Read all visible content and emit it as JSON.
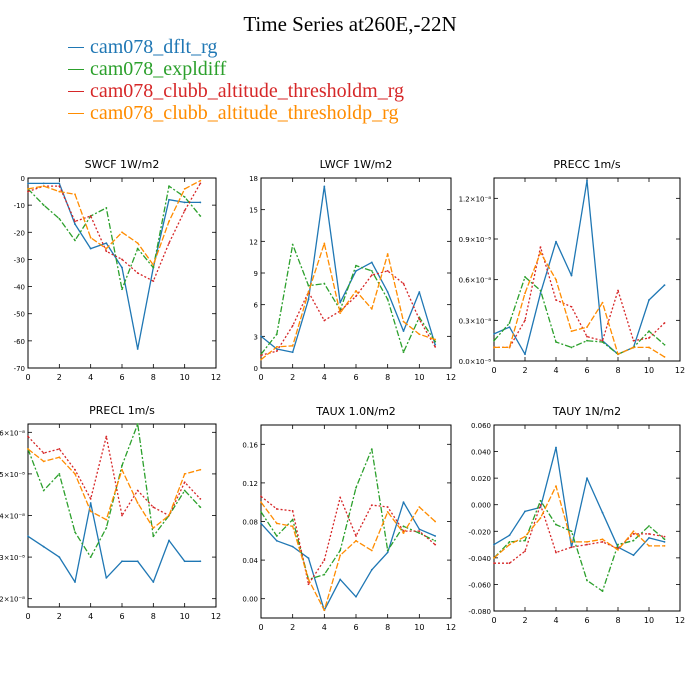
{
  "figure_title": "Time Series at260E,-22N",
  "legend": [
    {
      "name": "cam078_dflt_rg",
      "color": "#1f77b4"
    },
    {
      "name": "cam078_expldiff",
      "color": "#2ca02c"
    },
    {
      "name": "cam078_clubb_altitude_thresholdm_rg",
      "color": "#d62728"
    },
    {
      "name": "cam078_clubb_altitude_thresholdp_rg",
      "color": "#ff8c00"
    }
  ],
  "chart_data": [
    {
      "type": "line",
      "title": "SWCF   1W/m2",
      "xlim": [
        0,
        12
      ],
      "ylim": [
        -70,
        0
      ],
      "xticks": [
        "0",
        "2",
        "4",
        "6",
        "8",
        "10",
        "12"
      ],
      "yticks": [
        {
          "v": 0,
          "l": "0"
        },
        {
          "v": -10,
          "l": "-10"
        },
        {
          "v": -20,
          "l": "-20"
        },
        {
          "v": -30,
          "l": "-30"
        },
        {
          "v": -40,
          "l": "-40"
        },
        {
          "v": -50,
          "l": "-50"
        },
        {
          "v": -60,
          "l": "-60"
        },
        {
          "v": -70,
          "l": "-70"
        }
      ],
      "x": [
        0,
        1,
        2,
        3,
        4,
        5,
        6,
        7,
        8,
        9,
        10,
        11
      ],
      "series": [
        {
          "name": "cam078_dflt_rg",
          "values": [
            -2,
            -2,
            -2,
            -17,
            -26,
            -24,
            -33,
            -63,
            -33,
            -8,
            -9,
            -9
          ]
        },
        {
          "name": "cam078_expldiff",
          "values": [
            -4,
            -10,
            -15,
            -23,
            -14,
            -11,
            -41,
            -26,
            -33,
            -3,
            -7,
            -14
          ]
        },
        {
          "name": "cam078_clubb_altitude_thresholdm_rg",
          "values": [
            -5,
            -3,
            -3,
            -16,
            -14,
            -27,
            -30,
            -35,
            -38,
            -24,
            -12,
            -2
          ]
        },
        {
          "name": "cam078_clubb_altitude_thresholdp_rg",
          "values": [
            -4,
            -3,
            -5,
            -6,
            -22,
            -26,
            -20,
            -24,
            -32,
            -16,
            -4,
            -1
          ]
        }
      ]
    },
    {
      "type": "line",
      "title": "LWCF   1W/m2",
      "xlim": [
        0,
        12
      ],
      "ylim": [
        0,
        18
      ],
      "xticks": [
        "0",
        "2",
        "4",
        "6",
        "8",
        "10",
        "12"
      ],
      "yticks": [
        {
          "v": 0,
          "l": "0"
        },
        {
          "v": 3,
          "l": "3"
        },
        {
          "v": 6,
          "l": "6"
        },
        {
          "v": 9,
          "l": "9"
        },
        {
          "v": 12,
          "l": "12"
        },
        {
          "v": 15,
          "l": "15"
        },
        {
          "v": 18,
          "l": "18"
        }
      ],
      "x": [
        0,
        1,
        2,
        3,
        4,
        5,
        6,
        7,
        8,
        9,
        10,
        11
      ],
      "series": [
        {
          "name": "cam078_dflt_rg",
          "values": [
            3,
            1.8,
            1.5,
            6.5,
            17.2,
            6.2,
            9.2,
            10,
            7.2,
            3.5,
            7.2,
            2.2
          ]
        },
        {
          "name": "cam078_expldiff",
          "values": [
            1.3,
            3.2,
            11.7,
            7.8,
            8,
            5.5,
            9.7,
            9.2,
            6.5,
            1.5,
            4.8,
            2.5
          ]
        },
        {
          "name": "cam078_clubb_altitude_thresholdm_rg",
          "values": [
            1.2,
            1.6,
            4,
            7.2,
            4.5,
            5.4,
            6.8,
            8.8,
            9.2,
            8,
            4.6,
            2
          ]
        },
        {
          "name": "cam078_clubb_altitude_thresholdp_rg",
          "values": [
            0.8,
            2,
            2.1,
            7.2,
            11.8,
            5.2,
            7.3,
            5.6,
            10.8,
            4.4,
            3.2,
            2.7
          ]
        }
      ]
    },
    {
      "type": "line",
      "title": "PRECC   1m/s",
      "xlim": [
        0,
        12
      ],
      "ylim": [
        0,
        1.35
      ],
      "xticks": [
        "0",
        "2",
        "4",
        "6",
        "8",
        "10",
        "12"
      ],
      "yticks": [
        {
          "v": 0,
          "l": "0.0×10⁻⁸"
        },
        {
          "v": 0.3,
          "l": "0.3×10⁻⁸"
        },
        {
          "v": 0.6,
          "l": "0.6×10⁻⁸"
        },
        {
          "v": 0.9,
          "l": "0.9×10⁻⁸"
        },
        {
          "v": 1.2,
          "l": "1.2×10⁻⁸"
        }
      ],
      "x": [
        0,
        1,
        2,
        3,
        4,
        5,
        6,
        7,
        8,
        9,
        10,
        11
      ],
      "series": [
        {
          "name": "cam078_dflt_rg",
          "values": [
            0.2,
            0.25,
            0.05,
            0.5,
            0.88,
            0.63,
            1.33,
            0.15,
            0.05,
            0.1,
            0.45,
            0.56
          ]
        },
        {
          "name": "cam078_expldiff",
          "values": [
            0.15,
            0.28,
            0.62,
            0.52,
            0.14,
            0.1,
            0.15,
            0.14,
            0.05,
            0.1,
            0.22,
            0.12
          ]
        },
        {
          "name": "cam078_clubb_altitude_thresholdm_rg",
          "values": [
            0.1,
            0.1,
            0.3,
            0.84,
            0.45,
            0.4,
            0.18,
            0.15,
            0.52,
            0.15,
            0.17,
            0.28
          ]
        },
        {
          "name": "cam078_clubb_altitude_thresholdp_rg",
          "values": [
            0.1,
            0.1,
            0.5,
            0.8,
            0.6,
            0.22,
            0.25,
            0.43,
            0.05,
            0.1,
            0.1,
            0.03
          ]
        }
      ]
    },
    {
      "type": "line",
      "title": "PRECL   1m/s",
      "xlim": [
        0,
        12
      ],
      "ylim": [
        1.8,
        6.2
      ],
      "xticks": [
        "0",
        "2",
        "4",
        "6",
        "8",
        "10",
        "12"
      ],
      "yticks": [
        {
          "v": 2,
          "l": "2×10⁻⁸"
        },
        {
          "v": 3,
          "l": "3×10⁻⁸"
        },
        {
          "v": 4,
          "l": "4×10⁻⁸"
        },
        {
          "v": 5,
          "l": "5×10⁻⁸"
        },
        {
          "v": 6,
          "l": "6×10⁻⁸"
        }
      ],
      "x": [
        0,
        1,
        2,
        3,
        4,
        5,
        6,
        7,
        8,
        9,
        10,
        11
      ],
      "series": [
        {
          "name": "cam078_dflt_rg",
          "values": [
            3.5,
            3.25,
            3.0,
            2.4,
            4.3,
            2.5,
            2.9,
            2.9,
            2.4,
            3.4,
            2.9,
            2.9
          ]
        },
        {
          "name": "cam078_expldiff",
          "values": [
            5.6,
            4.6,
            5.0,
            3.6,
            3.0,
            3.7,
            5.2,
            6.2,
            3.5,
            4.0,
            4.6,
            4.2
          ]
        },
        {
          "name": "cam078_clubb_altitude_thresholdm_rg",
          "values": [
            5.9,
            5.5,
            5.6,
            5.1,
            4.4,
            5.9,
            4.0,
            4.6,
            4.2,
            4.0,
            4.8,
            4.4
          ]
        },
        {
          "name": "cam078_clubb_altitude_thresholdp_rg",
          "values": [
            5.6,
            5.3,
            5.4,
            5.0,
            4.1,
            3.9,
            5.1,
            4.3,
            3.7,
            4.0,
            5.0,
            5.1
          ]
        }
      ]
    },
    {
      "type": "line",
      "title": "TAUX   1.0N/m2",
      "xlim": [
        0,
        12
      ],
      "ylim": [
        -0.02,
        0.18
      ],
      "xticks": [
        "0",
        "2",
        "4",
        "6",
        "8",
        "10",
        "12"
      ],
      "yticks": [
        {
          "v": 0,
          "l": "0.00"
        },
        {
          "v": 0.04,
          "l": "0.04"
        },
        {
          "v": 0.08,
          "l": "0.08"
        },
        {
          "v": 0.12,
          "l": "0.12"
        },
        {
          "v": 0.16,
          "l": "0.16"
        }
      ],
      "x": [
        0,
        1,
        2,
        3,
        4,
        5,
        6,
        7,
        8,
        9,
        10,
        11
      ],
      "series": [
        {
          "name": "cam078_dflt_rg",
          "values": [
            0.078,
            0.06,
            0.054,
            0.042,
            -0.012,
            0.02,
            0.002,
            0.03,
            0.048,
            0.1,
            0.072,
            0.065
          ]
        },
        {
          "name": "cam078_expldiff",
          "values": [
            0.09,
            0.065,
            0.082,
            0.02,
            0.025,
            0.05,
            0.115,
            0.155,
            0.05,
            0.075,
            0.068,
            0.06
          ]
        },
        {
          "name": "cam078_clubb_altitude_thresholdm_rg",
          "values": [
            0.106,
            0.093,
            0.091,
            0.015,
            0.04,
            0.105,
            0.065,
            0.097,
            0.095,
            0.07,
            0.07,
            0.056
          ]
        },
        {
          "name": "cam078_clubb_altitude_thresholdp_rg",
          "values": [
            0.1,
            0.078,
            0.075,
            0.02,
            -0.012,
            0.045,
            0.06,
            0.05,
            0.09,
            0.068,
            0.095,
            0.08
          ]
        }
      ]
    },
    {
      "type": "line",
      "title": "TAUY   1N/m2",
      "xlim": [
        0,
        12
      ],
      "ylim": [
        -0.08,
        0.06
      ],
      "xticks": [
        "0",
        "2",
        "4",
        "6",
        "8",
        "10",
        "12"
      ],
      "yticks": [
        {
          "v": 0.06,
          "l": "0.060"
        },
        {
          "v": 0.04,
          "l": "0.040"
        },
        {
          "v": 0.02,
          "l": "0.020"
        },
        {
          "v": 0,
          "l": "0.000"
        },
        {
          "v": -0.02,
          "l": "-0.020"
        },
        {
          "v": -0.04,
          "l": "-0.040"
        },
        {
          "v": -0.06,
          "l": "-0.060"
        },
        {
          "v": -0.08,
          "l": "-0.080"
        }
      ],
      "x": [
        0,
        1,
        2,
        3,
        4,
        5,
        6,
        7,
        8,
        9,
        10,
        11
      ],
      "series": [
        {
          "name": "cam078_dflt_rg",
          "values": [
            -0.03,
            -0.023,
            -0.005,
            -0.002,
            0.043,
            -0.032,
            0.02,
            -0.006,
            -0.032,
            -0.038,
            -0.025,
            -0.028
          ]
        },
        {
          "name": "cam078_expldiff",
          "values": [
            -0.04,
            -0.028,
            -0.027,
            0.003,
            -0.015,
            -0.02,
            -0.057,
            -0.065,
            -0.03,
            -0.027,
            -0.016,
            -0.026
          ]
        },
        {
          "name": "cam078_clubb_altitude_thresholdm_rg",
          "values": [
            -0.044,
            -0.044,
            -0.035,
            0.0,
            -0.036,
            -0.032,
            -0.03,
            -0.028,
            -0.033,
            -0.022,
            -0.022,
            -0.024
          ]
        },
        {
          "name": "cam078_clubb_altitude_thresholdp_rg",
          "values": [
            -0.04,
            -0.03,
            -0.024,
            -0.01,
            0.014,
            -0.028,
            -0.028,
            -0.026,
            -0.034,
            -0.02,
            -0.031,
            -0.031
          ]
        }
      ]
    }
  ]
}
